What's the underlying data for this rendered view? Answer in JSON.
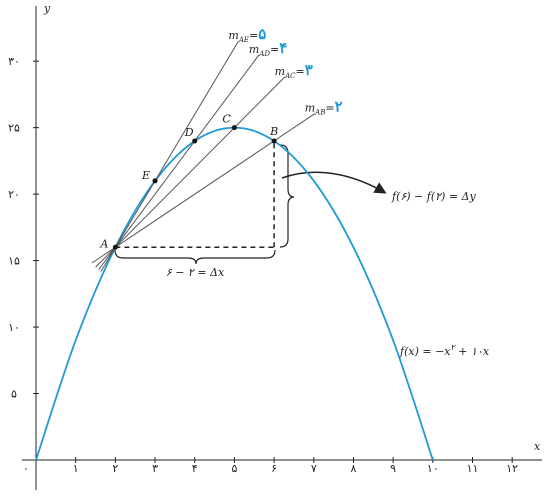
{
  "chart_data": {
    "type": "line",
    "x_label": "x",
    "y_label": "y",
    "xlim": [
      0,
      12.6
    ],
    "ylim": [
      0,
      34
    ],
    "xticks": [
      {
        "value": 0,
        "label": "۰"
      },
      {
        "value": 1,
        "label": "۱"
      },
      {
        "value": 2,
        "label": "۲"
      },
      {
        "value": 3,
        "label": "۳"
      },
      {
        "value": 4,
        "label": "۴"
      },
      {
        "value": 5,
        "label": "۵"
      },
      {
        "value": 6,
        "label": "۶"
      },
      {
        "value": 7,
        "label": "۷"
      },
      {
        "value": 8,
        "label": "۸"
      },
      {
        "value": 9,
        "label": "۹"
      },
      {
        "value": 10,
        "label": "۱۰"
      },
      {
        "value": 11,
        "label": "۱۱"
      },
      {
        "value": 12,
        "label": "۱۲"
      }
    ],
    "yticks": [
      {
        "value": 5,
        "label": "۵"
      },
      {
        "value": 10,
        "label": "۱۰"
      },
      {
        "value": 15,
        "label": "۱۵"
      },
      {
        "value": 20,
        "label": "۲۰"
      },
      {
        "value": 25,
        "label": "۲۵"
      },
      {
        "value": 30,
        "label": "۳۰"
      }
    ],
    "color": "#1e9ad6",
    "x": [
      0,
      1,
      2,
      3,
      4,
      5,
      6,
      7,
      8,
      9,
      10
    ],
    "values": [
      0,
      9,
      16,
      21,
      24,
      25,
      24,
      21,
      16,
      9,
      0
    ],
    "formula": {
      "lhs": "f(x) = −x",
      "exp": "۲",
      "rhs": " + ۱۰x"
    },
    "points": [
      {
        "label": "A",
        "x": 2,
        "y": 16
      },
      {
        "label": "B",
        "x": 6,
        "y": 24
      },
      {
        "label": "C",
        "x": 5,
        "y": 25
      },
      {
        "label": "D",
        "x": 4,
        "y": 24
      },
      {
        "label": "E",
        "x": 3,
        "y": 21
      }
    ],
    "slope_symbol": "m",
    "equals": "=",
    "secants": [
      {
        "name": "AE",
        "slope": 5,
        "slope_label": "۵"
      },
      {
        "name": "AD",
        "slope": 4,
        "slope_label": "۴"
      },
      {
        "name": "AC",
        "slope": 3,
        "slope_label": "۳"
      },
      {
        "name": "AB",
        "slope": 2,
        "slope_label": "۲"
      }
    ],
    "delta_x": "۶ − ۲ = Δx",
    "delta_y": "f(۶) − f(۲) = Δy"
  }
}
